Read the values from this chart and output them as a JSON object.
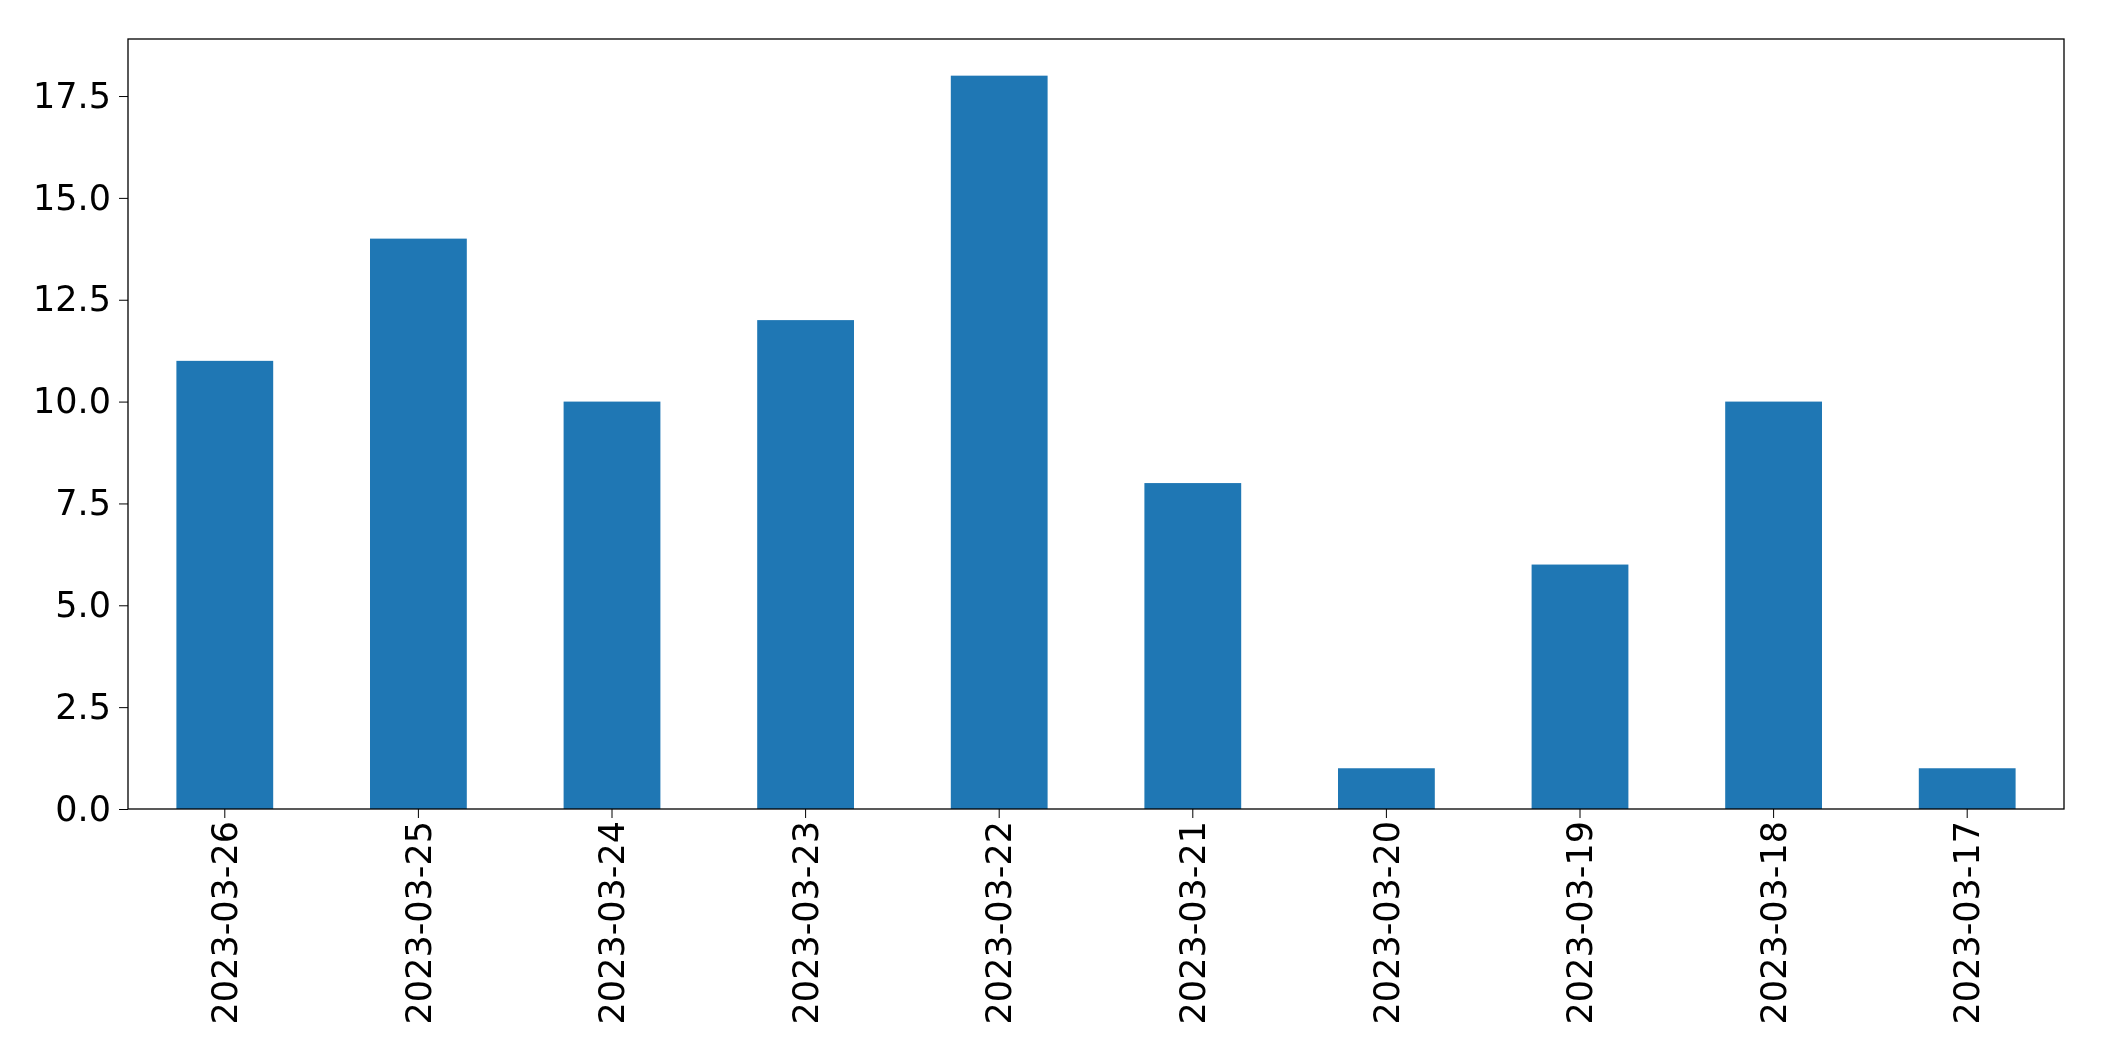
{
  "chart_data": {
    "type": "bar",
    "categories": [
      "2023-03-26",
      "2023-03-25",
      "2023-03-24",
      "2023-03-23",
      "2023-03-22",
      "2023-03-21",
      "2023-03-20",
      "2023-03-19",
      "2023-03-18",
      "2023-03-17"
    ],
    "values": [
      11,
      14,
      10,
      12,
      18,
      8,
      1,
      6,
      10,
      1
    ],
    "color": "#1f77b4",
    "ylim": [
      0,
      18.9
    ],
    "yticks": [
      {
        "value": 0,
        "label": "0.0"
      },
      {
        "value": 2.5,
        "label": "2.5"
      },
      {
        "value": 5,
        "label": "5.0"
      },
      {
        "value": 7.5,
        "label": "7.5"
      },
      {
        "value": 10,
        "label": "10.0"
      },
      {
        "value": 12.5,
        "label": "12.5"
      },
      {
        "value": 15,
        "label": "15.0"
      },
      {
        "value": 17.5,
        "label": "17.5"
      }
    ],
    "grid": false
  }
}
